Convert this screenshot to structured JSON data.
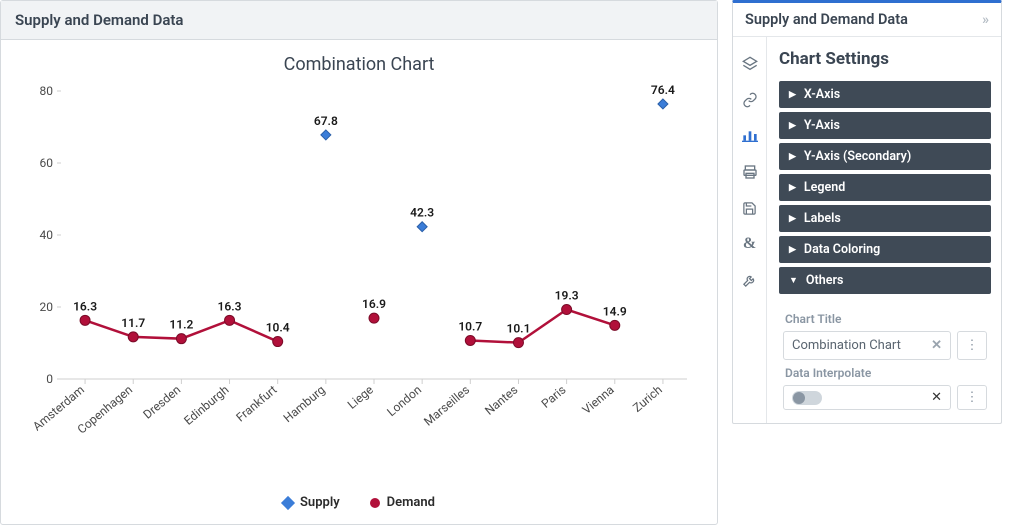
{
  "left_panel": {
    "header": "Supply and Demand Data",
    "chart": {
      "title": "Combination Chart",
      "type": "combination",
      "categories": [
        "Amsterdam",
        "Copenhagen",
        "Dresden",
        "Edinburgh",
        "Frankfurt",
        "Hamburg",
        "Liege",
        "London",
        "Marseilles",
        "Nantes",
        "Paris",
        "Vienna",
        "Zurich"
      ],
      "series": [
        {
          "name": "Supply",
          "type": "scatter",
          "marker": "diamond",
          "color": "#3b7dd8",
          "values": [
            null,
            null,
            null,
            null,
            null,
            67.8,
            null,
            42.3,
            null,
            null,
            null,
            null,
            76.4
          ],
          "label_font_weight": 600
        },
        {
          "name": "Demand",
          "type": "line",
          "marker": "circle",
          "color": "#b1103a",
          "line_width": 2.5,
          "values": [
            16.3,
            11.7,
            11.2,
            16.3,
            10.4,
            null,
            16.9,
            null,
            10.7,
            10.1,
            19.3,
            14.9,
            null
          ],
          "label_font_weight": 600
        }
      ],
      "y_axis": {
        "min": 0,
        "max": 80,
        "step": 20,
        "color": "#cfcfcf"
      },
      "x_axis": {
        "rotate_labels_deg": -40,
        "color": "#cfcfcf"
      },
      "background": "#ffffff",
      "label_fontsize": 12
    },
    "legend": {
      "items": [
        {
          "label": "Supply",
          "marker": "diamond",
          "color": "#3b7dd8"
        },
        {
          "label": "Demand",
          "marker": "circle",
          "color": "#b1103a"
        }
      ]
    }
  },
  "right_panel": {
    "header": "Supply and Demand Data",
    "settings_title": "Chart Settings",
    "rail_icons": [
      "layers",
      "link",
      "chart",
      "printer",
      "save",
      "ampersand",
      "wrench"
    ],
    "active_rail_index": 2,
    "accordion": [
      {
        "label": "X-Axis",
        "open": false
      },
      {
        "label": "Y-Axis",
        "open": false
      },
      {
        "label": "Y-Axis (Secondary)",
        "open": false
      },
      {
        "label": "Legend",
        "open": false
      },
      {
        "label": "Labels",
        "open": false
      },
      {
        "label": "Data Coloring",
        "open": false
      },
      {
        "label": "Others",
        "open": true
      }
    ],
    "others": {
      "chart_title_label": "Chart Title",
      "chart_title_value": "Combination Chart",
      "data_interpolate_label": "Data Interpolate",
      "data_interpolate_value": false
    },
    "colors": {
      "accent": "#2f6fd0",
      "accordion_bg": "#3f4a56",
      "border": "#d6dade"
    }
  }
}
